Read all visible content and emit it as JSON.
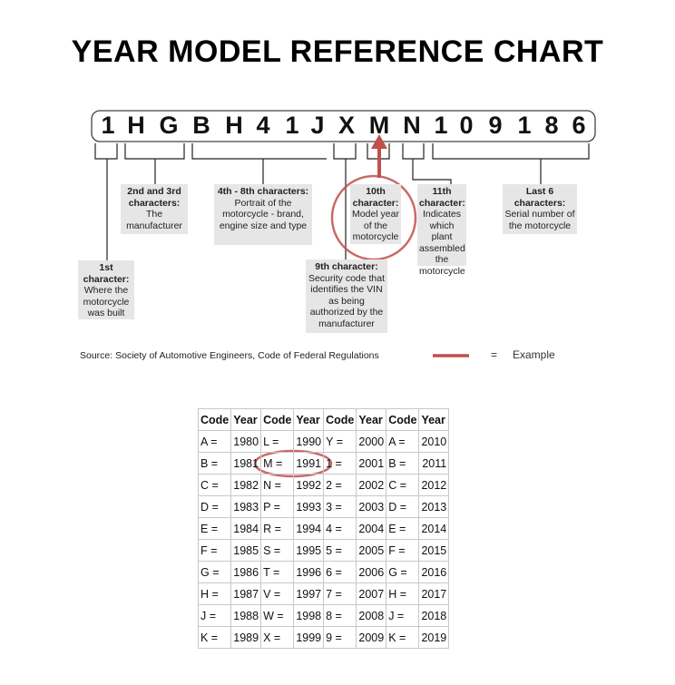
{
  "title": "YEAR MODEL REFERENCE CHART",
  "vin": [
    "1",
    "H",
    "G",
    "B",
    "H",
    "4",
    "1",
    "J",
    "X",
    "M",
    "N",
    "1",
    "0",
    "9",
    "1",
    "8",
    "6"
  ],
  "labels": {
    "first": {
      "head": "1st character:",
      "body": "Where the motorcycle was built"
    },
    "second_third": {
      "head": "2nd and 3rd characters:",
      "body": "The manufacturer"
    },
    "fourth_eighth": {
      "head": "4th - 8th characters:",
      "body": "Portrait of the motorcycle - brand, engine size and type"
    },
    "ninth": {
      "head": "9th character:",
      "body": "Security code that identifies the VIN as being authorized by the manufacturer"
    },
    "tenth": {
      "head": "10th character:",
      "body": "Model year of the motorcycle"
    },
    "eleventh": {
      "head": "11th character:",
      "body": "Indicates which plant assembled the motorcycle"
    },
    "last6": {
      "head": "Last 6 characters:",
      "body": "Serial number of the motorcycle"
    }
  },
  "source": "Source:  Society of Automotive Engineers, Code of Federal Regulations",
  "legend": {
    "equals": "=",
    "label": "Example",
    "color": "#c0504d"
  },
  "table": {
    "headers": [
      "Code",
      "Year",
      "Code",
      "Year",
      "Code",
      "Year",
      "Code",
      "Year"
    ],
    "rows": [
      [
        "A =",
        "1980",
        "L =",
        "1990",
        "Y =",
        "2000",
        "A =",
        "2010"
      ],
      [
        "B =",
        "1981",
        "M =",
        "1991",
        "1 =",
        "2001",
        "B =",
        "2011"
      ],
      [
        "C =",
        "1982",
        "N =",
        "1992",
        "2 =",
        "2002",
        "C =",
        "2012"
      ],
      [
        "D =",
        "1983",
        "P =",
        "1993",
        "3 =",
        "2003",
        "D =",
        "2013"
      ],
      [
        "E =",
        "1984",
        "R =",
        "1994",
        "4 =",
        "2004",
        "E =",
        "2014"
      ],
      [
        "F =",
        "1985",
        "S =",
        "1995",
        "5 =",
        "2005",
        "F =",
        "2015"
      ],
      [
        "G =",
        "1986",
        "T =",
        "1996",
        "6 =",
        "2006",
        "G =",
        "2016"
      ],
      [
        "H =",
        "1987",
        "V =",
        "1997",
        "7 =",
        "2007",
        "H =",
        "2017"
      ],
      [
        "J =",
        "1988",
        "W =",
        "1998",
        "8 =",
        "2008",
        "J =",
        "2018"
      ],
      [
        "K =",
        "1989",
        "X =",
        "1999",
        "9 =",
        "2009",
        "K =",
        "2019"
      ]
    ]
  }
}
